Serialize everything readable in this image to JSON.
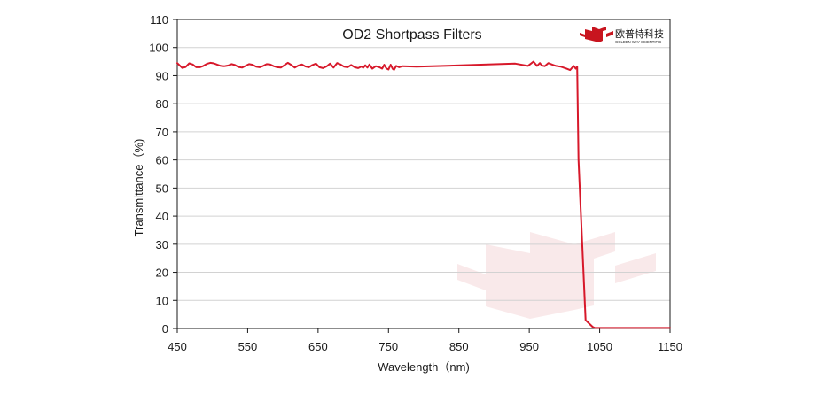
{
  "chart_data": {
    "type": "line",
    "title": "OD2  Shortpass Filters",
    "xlabel": "Wavelength（nm)",
    "ylabel": "Transmittance（%)",
    "xlim": [
      450,
      1150
    ],
    "ylim": [
      0,
      110
    ],
    "xticks": [
      "450",
      "550",
      "650",
      "750",
      "850",
      "950",
      "1050",
      "1150"
    ],
    "yticks": [
      "0",
      "10",
      "20",
      "30",
      "40",
      "50",
      "60",
      "70",
      "80",
      "90",
      "100",
      "110"
    ],
    "grid": "horizontal",
    "line_color": "#d7182a",
    "series": [
      {
        "x": [
          450,
          457,
          462,
          467,
          472,
          477,
          482,
          487,
          492,
          497,
          502,
          507,
          512,
          517,
          522,
          527,
          532,
          537,
          542,
          547,
          552,
          557,
          562,
          567,
          572,
          577,
          582,
          587,
          592,
          597,
          602,
          607,
          612,
          617,
          622,
          627,
          632,
          637,
          642,
          647,
          652,
          657,
          662,
          667,
          672,
          677,
          682,
          687,
          692,
          697,
          702,
          707,
          712,
          714,
          717,
          720,
          723,
          727,
          732,
          737,
          741,
          744,
          747,
          750,
          753,
          756,
          758,
          761,
          765,
          770,
          790,
          930,
          948,
          956,
          961,
          965,
          968,
          972,
          977,
          983,
          988,
          995,
          1002,
          1008,
          1013,
          1016,
          1018,
          1020,
          1030,
          1040,
          1043,
          1050,
          1060,
          1100,
          1150
        ],
        "values": [
          94.5,
          92.8,
          93.1,
          94.4,
          94.0,
          93.0,
          93.0,
          93.5,
          94.2,
          94.6,
          94.4,
          93.9,
          93.5,
          93.4,
          93.6,
          94.1,
          93.8,
          93.1,
          92.9,
          93.5,
          94.1,
          93.9,
          93.2,
          93.0,
          93.5,
          94.1,
          94.0,
          93.4,
          93.0,
          92.9,
          93.7,
          94.6,
          93.8,
          92.9,
          93.6,
          94.0,
          93.3,
          93.0,
          93.8,
          94.3,
          93.0,
          92.7,
          93.3,
          94.3,
          92.9,
          94.5,
          94.0,
          93.2,
          93.0,
          93.8,
          93.0,
          92.7,
          93.3,
          92.8,
          93.7,
          92.9,
          94.0,
          92.5,
          93.4,
          93.0,
          92.5,
          93.9,
          92.6,
          92.2,
          93.9,
          92.4,
          92.1,
          93.5,
          93.0,
          93.4,
          93.2,
          94.3,
          93.5,
          95.0,
          93.5,
          94.5,
          93.6,
          93.4,
          94.5,
          93.9,
          93.5,
          93.2,
          92.6,
          92.0,
          93.5,
          92.5,
          93.2,
          60.0,
          3.0,
          0.6,
          0.2,
          0.2,
          0.2,
          0.2,
          0.2
        ]
      }
    ]
  },
  "brand": {
    "name": "欧普特科技",
    "tagline": "GOLDEN WAY SCIENTIFIC",
    "accent": "#c8151f"
  }
}
